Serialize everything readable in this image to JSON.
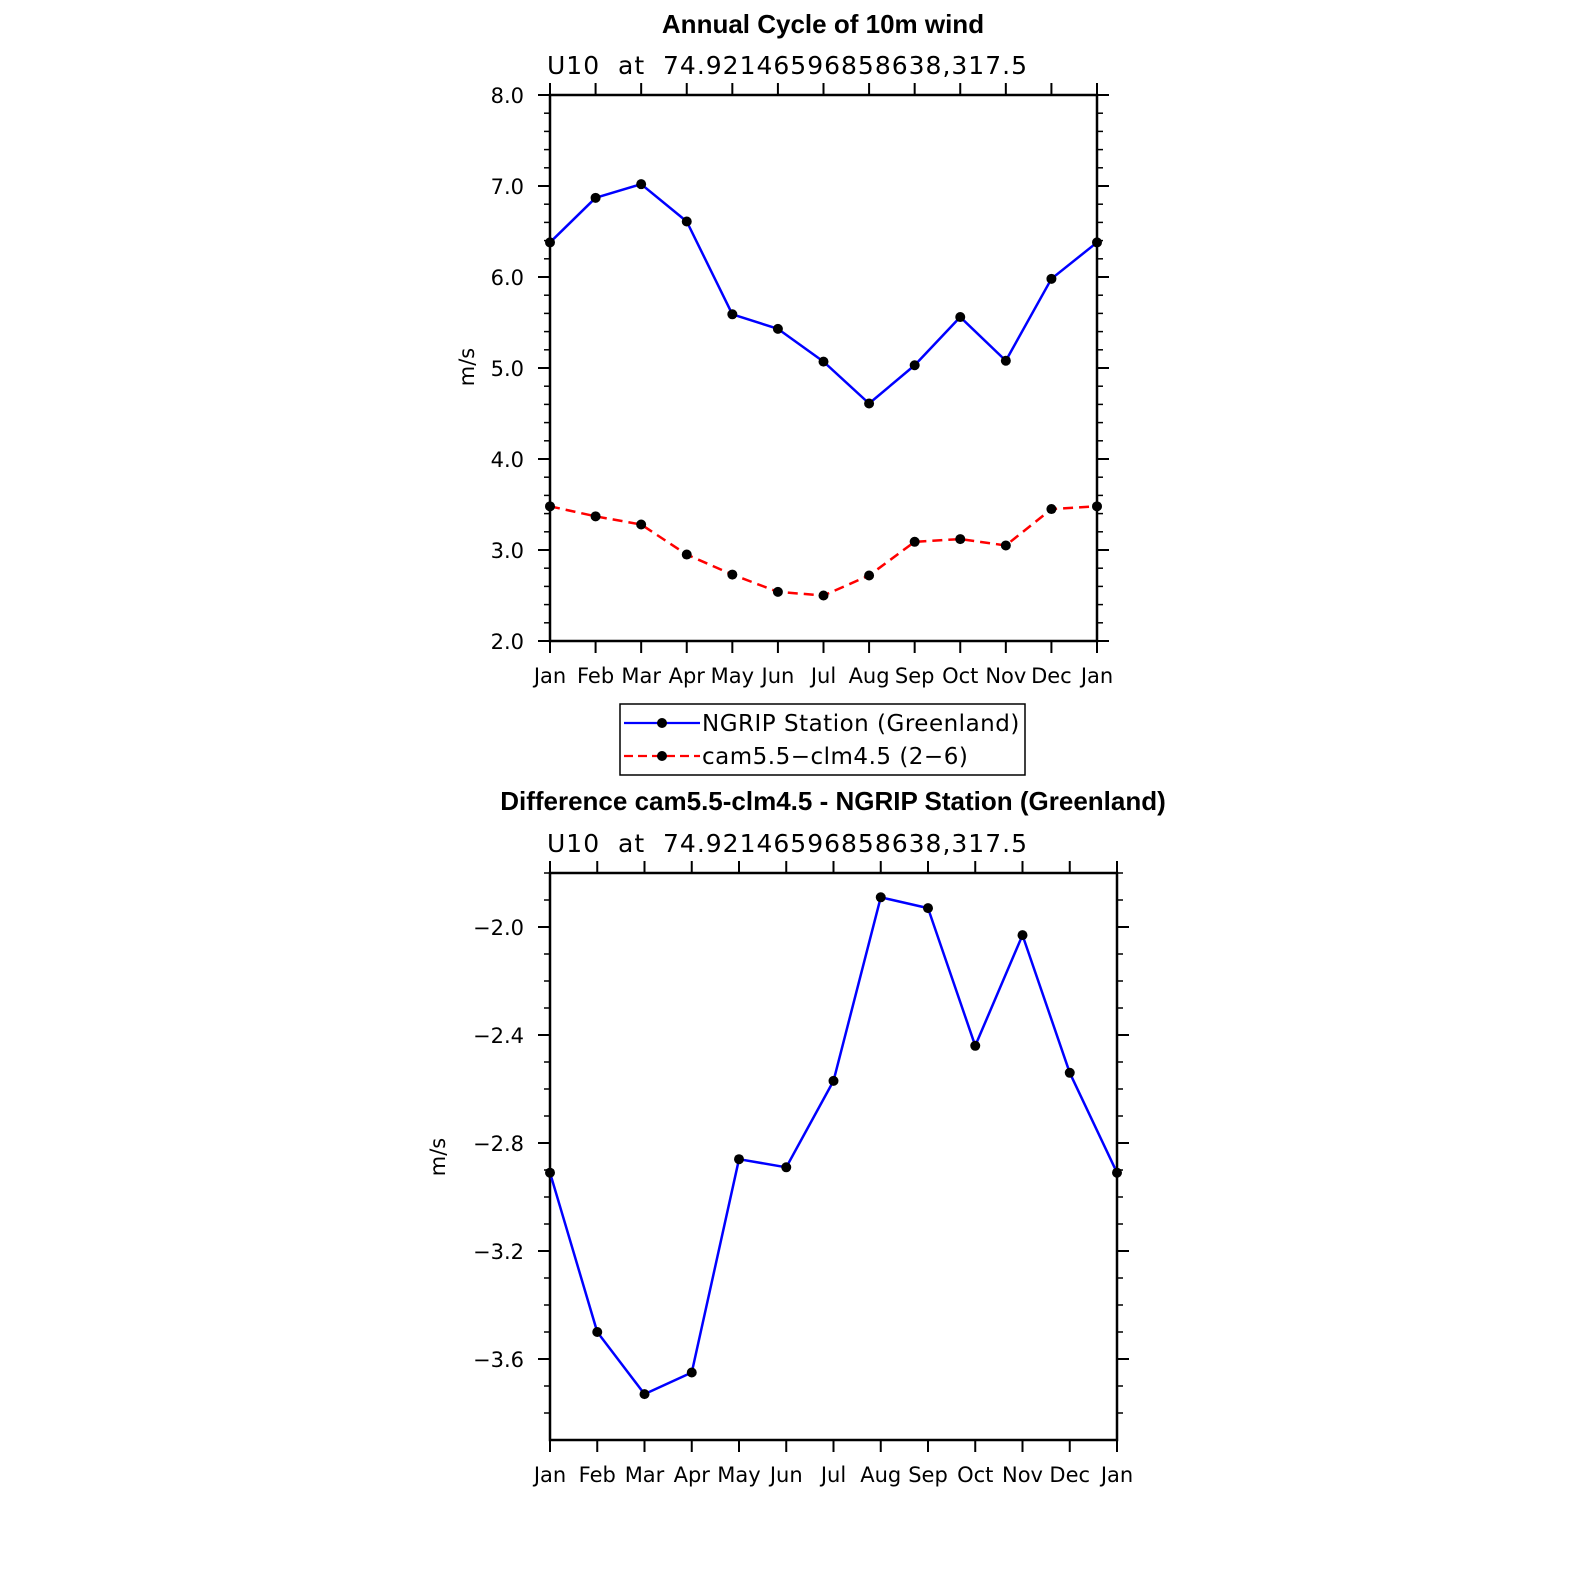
{
  "chart_data": [
    {
      "type": "line",
      "title": "Annual Cycle of 10m wind",
      "subtitle": "U10  at  74.92146596858638,317.5",
      "xlabel": "",
      "ylabel": "m/s",
      "ylim": [
        2.0,
        8.0
      ],
      "yticks": [
        "2.0",
        "3.0",
        "4.0",
        "5.0",
        "6.0",
        "7.0",
        "8.0"
      ],
      "categories": [
        "Jan",
        "Feb",
        "Mar",
        "Apr",
        "May",
        "Jun",
        "Jul",
        "Aug",
        "Sep",
        "Oct",
        "Nov",
        "Dec",
        "Jan"
      ],
      "series": [
        {
          "name": "NGRIP Station (Greenland)",
          "color": "#0000ff",
          "dash": "solid",
          "values": [
            6.38,
            6.87,
            7.02,
            6.61,
            5.59,
            5.43,
            5.07,
            4.61,
            5.03,
            5.56,
            5.08,
            5.98,
            6.38
          ]
        },
        {
          "name": "cam5.5−clm4.5 (2−6)",
          "color": "#ff0000",
          "dash": "dashed",
          "values": [
            3.48,
            3.37,
            3.28,
            2.95,
            2.73,
            2.54,
            2.5,
            2.72,
            3.09,
            3.12,
            3.05,
            3.45,
            3.48
          ]
        }
      ],
      "legend": "bottom-center"
    },
    {
      "type": "line",
      "title": "Difference cam5.5-clm4.5 - NGRIP Station (Greenland)",
      "subtitle": "U10  at  74.92146596858638,317.5",
      "xlabel": "",
      "ylabel": "m/s",
      "ylim": [
        -3.9,
        -1.8
      ],
      "yticks": [
        "−3.6",
        "−3.2",
        "−2.8",
        "−2.4",
        "−2.0"
      ],
      "ytick_values": [
        -3.6,
        -3.2,
        -2.8,
        -2.4,
        -2.0
      ],
      "categories": [
        "Jan",
        "Feb",
        "Mar",
        "Apr",
        "May",
        "Jun",
        "Jul",
        "Aug",
        "Sep",
        "Oct",
        "Nov",
        "Dec",
        "Jan"
      ],
      "series": [
        {
          "name": "Difference",
          "color": "#0000ff",
          "dash": "solid",
          "values": [
            -2.91,
            -3.5,
            -3.73,
            -3.65,
            -2.86,
            -2.89,
            -2.57,
            -1.89,
            -1.93,
            -2.44,
            -2.03,
            -2.54,
            -2.91
          ]
        }
      ]
    }
  ]
}
